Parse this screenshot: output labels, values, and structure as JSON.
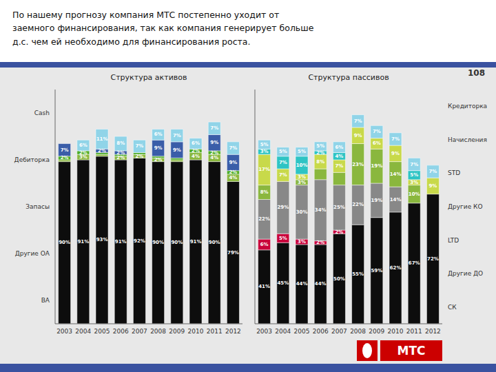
{
  "title": "По нашему прогнозу компания МТС постепенно уходит от\nзаемного финансирования, так как компания генерирует больше\nд.с. чем ей необходимо для финансирования роста.",
  "annotations": [
    "108",
    "МТС"
  ],
  "chart_data": [
    {
      "type": "bar",
      "stacked": true,
      "title": "Структура активов",
      "categories": [
        "2003",
        "2004",
        "2005",
        "2006",
        "2007",
        "2008",
        "2009",
        "2010",
        "2011",
        "2012"
      ],
      "series": [
        {
          "name": "ВА",
          "color": "#0d0d0d",
          "values": [
            90,
            91,
            93,
            91,
            92,
            90,
            90,
            91,
            90,
            79
          ],
          "value_labels": [
            "90%",
            "91%",
            "93%",
            "91%",
            "92%",
            "90%",
            "90%",
            "91%",
            "90%",
            "79%"
          ]
        },
        {
          "name": "Другие ОА",
          "color": "#8ab73e",
          "values": [
            1,
            3,
            1,
            2,
            2,
            2,
            1,
            4,
            4,
            4
          ],
          "value_labels": [
            null,
            "3%",
            null,
            "2%",
            "2%",
            "2%",
            null,
            "4%",
            "4%",
            "4%"
          ]
        },
        {
          "name": "Запасы",
          "color": "#4dac26",
          "values": [
            2,
            2,
            1,
            1,
            1,
            1,
            1,
            2,
            2,
            2
          ],
          "value_labels": [
            "2%",
            "2%",
            null,
            null,
            null,
            null,
            null,
            "2%",
            "2%",
            "2%"
          ]
        },
        {
          "name": "Дебиторка",
          "color": "#3a5da8",
          "values": [
            7,
            0,
            2,
            2,
            0,
            9,
            9,
            0,
            9,
            9
          ],
          "value_labels": [
            "7%",
            null,
            "2%",
            "2%",
            null,
            "9%",
            "9%",
            null,
            "9%",
            "9%"
          ]
        },
        {
          "name": "Cash",
          "color": "#90d4e8",
          "values": [
            0,
            6,
            11,
            8,
            7,
            6,
            7,
            6,
            7,
            7
          ],
          "value_labels": [
            null,
            "6%",
            "11%",
            "8%",
            "7%",
            "6%",
            "7%",
            "6%",
            "7%",
            "7%"
          ]
        }
      ],
      "ylim": [
        0,
        130
      ],
      "grid": false,
      "tick_labels": "x",
      "data_labels": true,
      "legend": "left"
    },
    {
      "type": "bar",
      "stacked": true,
      "title": "Структура пассивов",
      "categories": [
        "2003",
        "2004",
        "2005",
        "2006",
        "2007",
        "2008",
        "2009",
        "2010",
        "2011",
        "2012"
      ],
      "series": [
        {
          "name": "СК",
          "color": "#0d0d0d",
          "values": [
            41,
            45,
            44,
            44,
            50,
            55,
            59,
            62,
            67,
            72
          ],
          "value_labels": [
            "41%",
            "45%",
            "44%",
            "44%",
            "50%",
            "55%",
            "59%",
            "62%",
            "67%",
            "72%"
          ]
        },
        {
          "name": "Другие ДО",
          "color": "#c8003a",
          "values": [
            6,
            5,
            3,
            2,
            2,
            0,
            0,
            0,
            0,
            0
          ],
          "value_labels": [
            "6%",
            "5%",
            "3%",
            "2%",
            "2%",
            null,
            null,
            null,
            null,
            null
          ]
        },
        {
          "name": "LTD",
          "color": "#888888",
          "values": [
            22,
            29,
            30,
            34,
            25,
            22,
            19,
            14,
            0,
            0
          ],
          "value_labels": [
            "22%",
            "29%",
            "30%",
            "34%",
            "25%",
            "22%",
            "19%",
            "14%",
            null,
            null
          ]
        },
        {
          "name": "Другие КО",
          "color": "#8ab73e",
          "values": [
            8,
            0,
            3,
            6,
            7,
            23,
            19,
            14,
            10,
            0
          ],
          "value_labels": [
            "8%",
            null,
            "3%",
            null,
            null,
            "23%",
            "19%",
            "14%",
            "10%",
            null
          ]
        },
        {
          "name": "STD",
          "color": "#c8d94a",
          "values": [
            17,
            7,
            3,
            8,
            7,
            9,
            6,
            9,
            3,
            9
          ],
          "value_labels": [
            "17%",
            "7%",
            "3%",
            "8%",
            "7%",
            "9%",
            "6%",
            "9%",
            "3%",
            "9%"
          ]
        },
        {
          "name": "Начисления",
          "color": "#2ec4c4",
          "values": [
            3,
            7,
            10,
            2,
            4,
            0,
            0,
            0,
            5,
            0
          ],
          "value_labels": [
            "3%",
            "7%",
            "10%",
            "2%",
            "4%",
            null,
            null,
            null,
            "5%",
            null
          ]
        },
        {
          "name": "Кредиторка",
          "color": "#90d4e8",
          "values": [
            5,
            5,
            5,
            5,
            6,
            7,
            7,
            7,
            7,
            7
          ],
          "value_labels": [
            "5%",
            "5%",
            "5%",
            "5%",
            "6%",
            "7%",
            "7%",
            "7%",
            "7%",
            "7%"
          ]
        }
      ],
      "ylim": [
        0,
        130
      ],
      "grid": false,
      "tick_labels": "x",
      "data_labels": true,
      "legend": "right"
    }
  ]
}
